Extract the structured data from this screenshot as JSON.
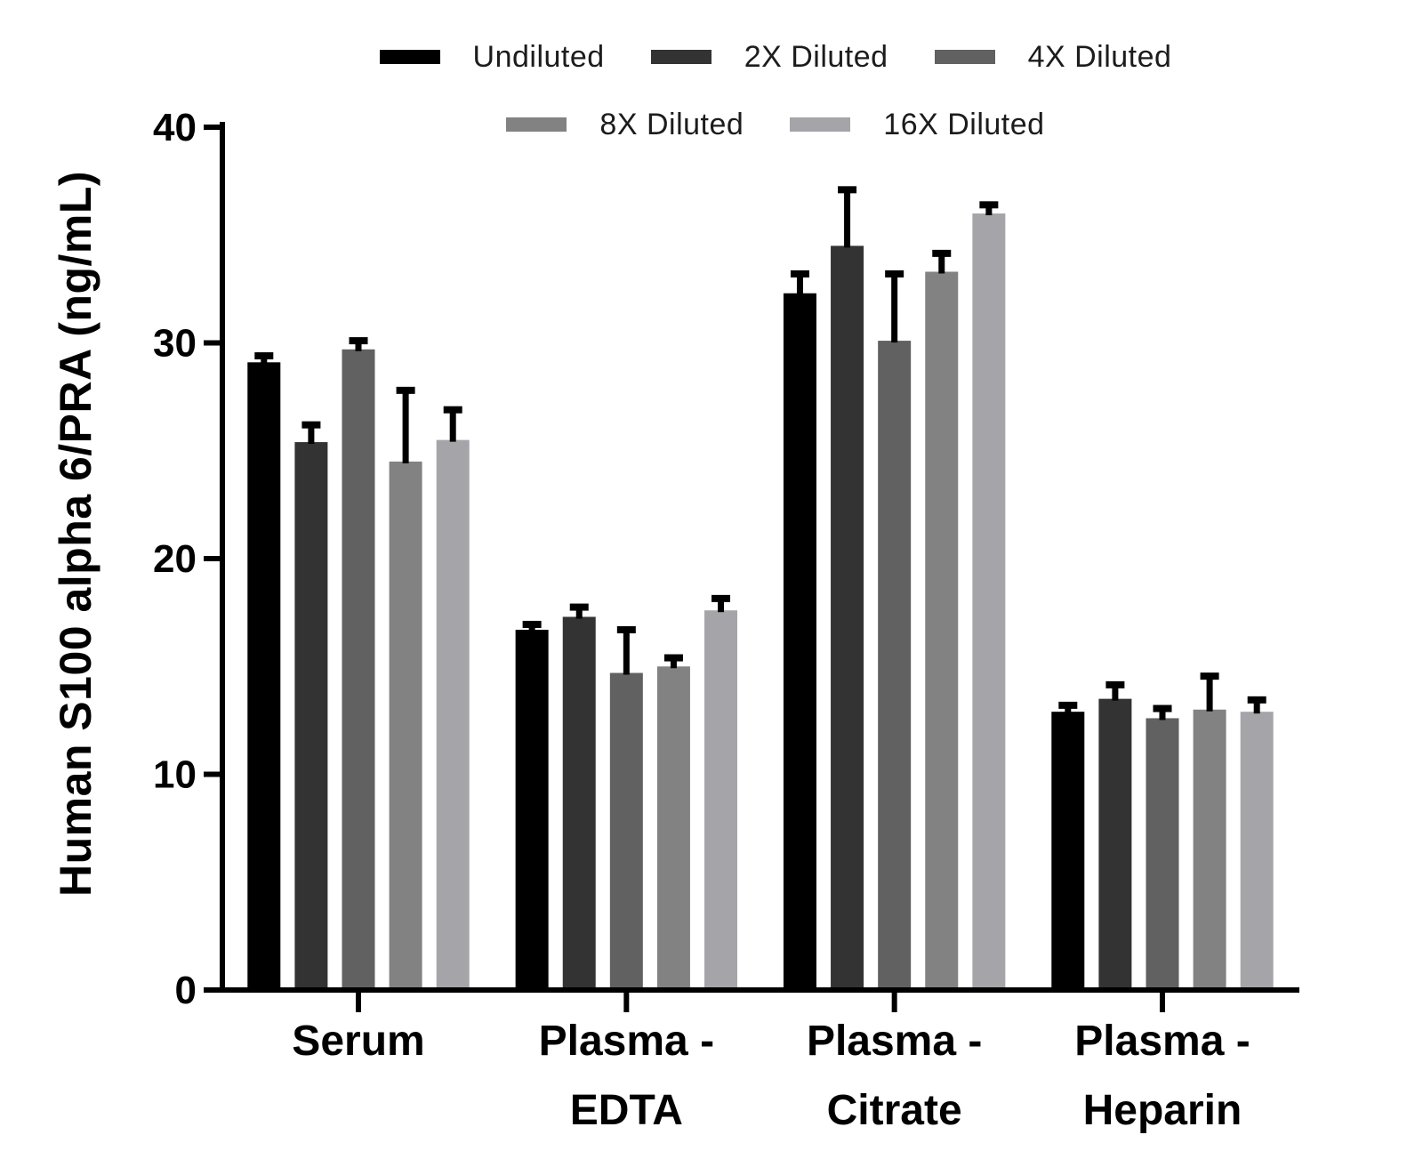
{
  "figure": {
    "background_color": "#ffffff",
    "text_color": "#000000"
  },
  "chart_data": {
    "type": "bar",
    "title": "",
    "xlabel": "",
    "ylabel": "Human S100 alpha 6/PRA (ng/mL)",
    "ylim": [
      0,
      40
    ],
    "yticks": [
      0,
      10,
      20,
      30,
      40
    ],
    "grid": false,
    "legend_position": "top, two rows",
    "error_bars": "upper SD whiskers with caps, black",
    "categories": [
      "Serum",
      "Plasma -\nEDTA",
      "Plasma -\nCitrate",
      "Plasma -\nHeparin"
    ],
    "series": [
      {
        "name": "Undiluted",
        "color": "#000000",
        "values": [
          29.1,
          16.7,
          32.3,
          12.9
        ],
        "error_sd": [
          0.3,
          0.25,
          0.9,
          0.3
        ]
      },
      {
        "name": "2X Diluted",
        "color": "#333333",
        "values": [
          25.4,
          17.3,
          34.5,
          13.5
        ],
        "error_sd": [
          0.8,
          0.45,
          2.6,
          0.65
        ]
      },
      {
        "name": "4X Diluted",
        "color": "#616161",
        "values": [
          29.7,
          14.7,
          30.1,
          12.6
        ],
        "error_sd": [
          0.4,
          2.0,
          3.1,
          0.45
        ]
      },
      {
        "name": "8X Diluted",
        "color": "#828282",
        "values": [
          24.5,
          15.0,
          33.3,
          13.0
        ],
        "error_sd": [
          3.3,
          0.4,
          0.85,
          1.55
        ]
      },
      {
        "name": "16X Diluted",
        "color": "#a5a5a9",
        "values": [
          25.5,
          17.6,
          36.0,
          12.9
        ],
        "error_sd": [
          1.4,
          0.55,
          0.4,
          0.55
        ]
      }
    ]
  }
}
